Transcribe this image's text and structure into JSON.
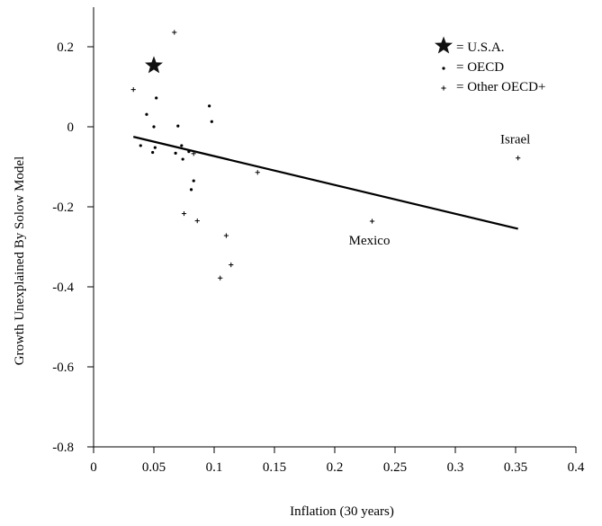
{
  "chart_data": {
    "type": "scatter",
    "title": "",
    "xlabel": "Inflation (30 years)",
    "ylabel": "Growth Unexplained By Solow Model",
    "xlim": [
      0,
      0.4
    ],
    "ylim": [
      -0.8,
      0.3
    ],
    "x_ticks": [
      0,
      0.05,
      0.1,
      0.15,
      0.2,
      0.25,
      0.3,
      0.35,
      0.4
    ],
    "x_tick_labels": [
      "0",
      "0.05",
      "0.1",
      "0.15",
      "0.2",
      "0.25",
      "0.3",
      "0.35",
      "0.4"
    ],
    "y_ticks": [
      -0.8,
      -0.6,
      -0.4,
      -0.2,
      0,
      0.2
    ],
    "y_tick_labels": [
      "-0.8",
      "-0.6",
      "-0.4",
      "-0.2",
      "0",
      "0.2"
    ],
    "grid": false,
    "legend_position": "top-right",
    "series": [
      {
        "name": "U.S.A.",
        "legend_label": "= U.S.A.",
        "marker": "star",
        "points": [
          {
            "x": 0.05,
            "y": 0.153
          }
        ]
      },
      {
        "name": "OECD",
        "legend_label": "= OECD",
        "marker": "dot",
        "points": [
          {
            "x": 0.039,
            "y": -0.047
          },
          {
            "x": 0.044,
            "y": 0.031
          },
          {
            "x": 0.049,
            "y": -0.064
          },
          {
            "x": 0.05,
            "y": 0.0
          },
          {
            "x": 0.051,
            "y": -0.052
          },
          {
            "x": 0.052,
            "y": 0.072
          },
          {
            "x": 0.068,
            "y": -0.066
          },
          {
            "x": 0.07,
            "y": 0.002
          },
          {
            "x": 0.073,
            "y": -0.047
          },
          {
            "x": 0.074,
            "y": -0.081
          },
          {
            "x": 0.079,
            "y": -0.062
          },
          {
            "x": 0.081,
            "y": -0.157
          },
          {
            "x": 0.083,
            "y": -0.135
          },
          {
            "x": 0.096,
            "y": 0.052
          },
          {
            "x": 0.098,
            "y": 0.013
          }
        ]
      },
      {
        "name": "Other OECD+",
        "legend_label": "= Other OECD+",
        "marker": "plus",
        "points": [
          {
            "x": 0.033,
            "y": 0.093
          },
          {
            "x": 0.067,
            "y": 0.236
          },
          {
            "x": 0.075,
            "y": -0.217
          },
          {
            "x": 0.083,
            "y": -0.067
          },
          {
            "x": 0.086,
            "y": -0.235
          },
          {
            "x": 0.105,
            "y": -0.378
          },
          {
            "x": 0.11,
            "y": -0.272
          },
          {
            "x": 0.114,
            "y": -0.345
          },
          {
            "x": 0.136,
            "y": -0.114
          },
          {
            "x": 0.231,
            "y": -0.236
          },
          {
            "x": 0.352,
            "y": -0.078
          }
        ]
      }
    ],
    "trend_line": {
      "x": [
        0.033,
        0.352
      ],
      "y": [
        -0.025,
        -0.255
      ]
    },
    "annotations": [
      {
        "text": "Israel",
        "x": 0.352,
        "y": -0.078
      },
      {
        "text": "Mexico",
        "x": 0.231,
        "y": -0.236
      }
    ]
  }
}
